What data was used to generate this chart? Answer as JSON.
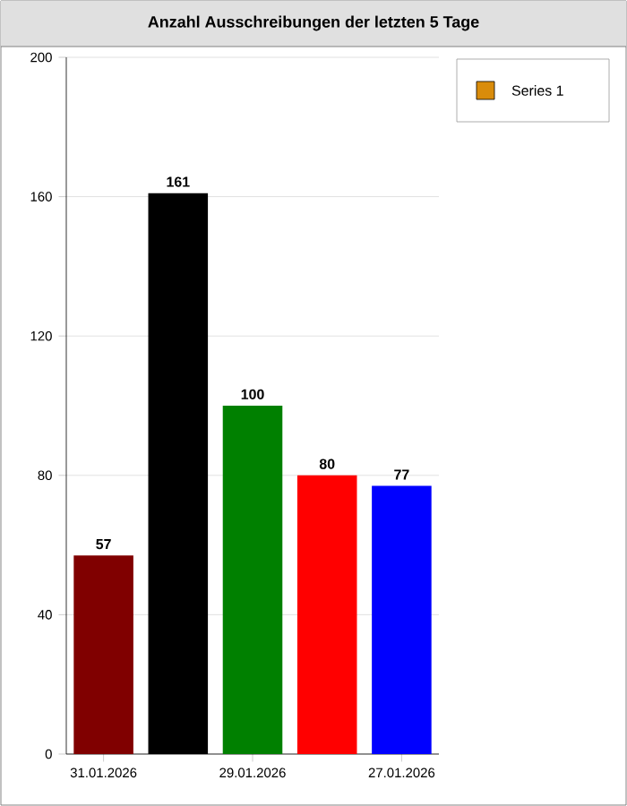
{
  "chart_data": {
    "type": "bar",
    "title": "Anzahl Ausschreibungen der letzten 5 Tage",
    "categories": [
      "31.01.2026",
      null,
      "29.01.2026",
      null,
      "27.01.2026"
    ],
    "series": [
      {
        "name": "Series 1",
        "color": "#d98c0b",
        "colors": [
          "#800000",
          "#000000",
          "#008000",
          "#ff0000",
          "#0000ff"
        ],
        "values": [
          57,
          161,
          100,
          80,
          77
        ]
      }
    ],
    "ylim": [
      0,
      200
    ],
    "yticks": [
      0,
      40,
      80,
      120,
      160,
      200
    ],
    "grid": "y",
    "data_labels": true,
    "legend": "right"
  }
}
